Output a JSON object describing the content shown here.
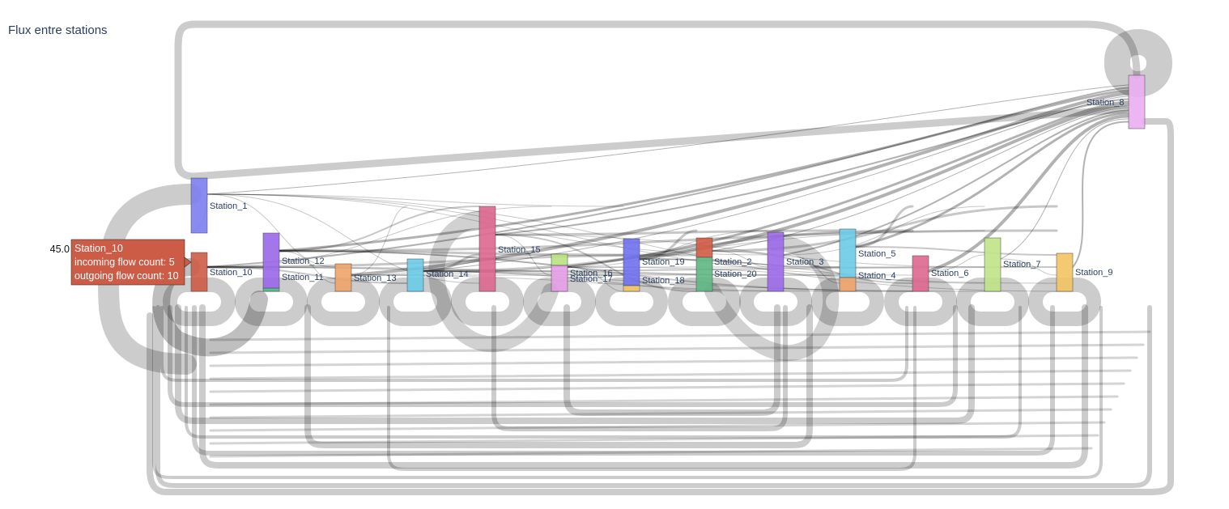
{
  "title": "Flux entre stations",
  "chart_data": {
    "type": "sankey",
    "title": "Flux entre stations",
    "nodes": [
      {
        "name": "Station_1",
        "color": "#7d7ef0"
      },
      {
        "name": "Station_10",
        "color": "#cd5c47"
      },
      {
        "name": "Station_11",
        "color": "#4cbd8a"
      },
      {
        "name": "Station_12",
        "color": "#9a67ea"
      },
      {
        "name": "Station_13",
        "color": "#efa46a"
      },
      {
        "name": "Station_14",
        "color": "#6acbe6"
      },
      {
        "name": "Station_15",
        "color": "#de6790"
      },
      {
        "name": "Station_16",
        "color": "#b9e27f"
      },
      {
        "name": "Station_17",
        "color": "#e59ee8"
      },
      {
        "name": "Station_19",
        "color": "#6f71ee"
      },
      {
        "name": "Station_18",
        "color": "#f1c463"
      },
      {
        "name": "Station_2",
        "color": "#d25c46"
      },
      {
        "name": "Station_20",
        "color": "#5fb783"
      },
      {
        "name": "Station_3",
        "color": "#9b6aea"
      },
      {
        "name": "Station_5",
        "color": "#6bcbe6"
      },
      {
        "name": "Station_4",
        "color": "#efa46a"
      },
      {
        "name": "Station_6",
        "color": "#de6790"
      },
      {
        "name": "Station_7",
        "color": "#c1e387"
      },
      {
        "name": "Station_9",
        "color": "#f2c463"
      },
      {
        "name": "Station_8",
        "color": "#ebadf1"
      }
    ],
    "hover": {
      "node": "Station_10",
      "value": "45.0",
      "label": "Station_10",
      "incoming": "incoming flow count: 5",
      "outgoing": "outgoing flow count: 10",
      "color": "#cd5c47"
    }
  }
}
